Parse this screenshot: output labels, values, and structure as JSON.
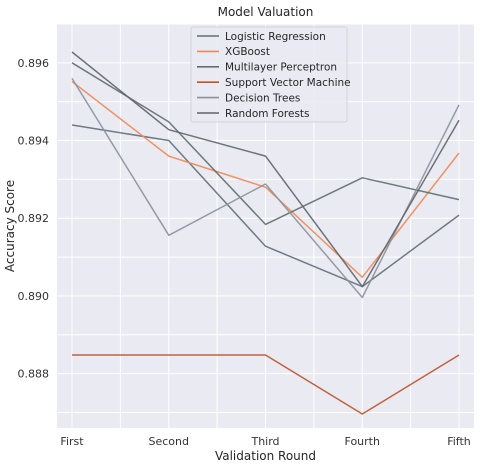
{
  "chart_data": {
    "type": "line",
    "title": "Model Valuation",
    "xlabel": "Validation Round",
    "ylabel": "Accuracy Score",
    "categories": [
      "First",
      "Second",
      "Third",
      "Fourth",
      "Fifth"
    ],
    "ylim": [
      0.8866,
      0.897
    ],
    "yticks": [
      0.888,
      0.89,
      0.892,
      0.894,
      0.896
    ],
    "ytick_labels": [
      "0.888",
      "0.890",
      "0.892",
      "0.894",
      "0.896"
    ],
    "grid": true,
    "legend_position": "top-center",
    "series": [
      {
        "name": "Logistic Regression",
        "color": "#5f6f7a",
        "values": [
          0.8944,
          0.894,
          0.89128,
          0.89024,
          0.89208
        ]
      },
      {
        "name": "XGBoost",
        "color": "#ee8a55",
        "values": [
          0.89552,
          0.8936,
          0.8928,
          0.89048,
          0.89368
        ]
      },
      {
        "name": "Multilayer Perceptron",
        "color": "#5f6e6e",
        "values": [
          0.896,
          0.89448,
          0.89184,
          0.89304,
          0.89248
        ]
      },
      {
        "name": "Support Vector Machine",
        "color": "#c0532a",
        "values": [
          0.88848,
          0.88848,
          0.88848,
          0.88696,
          0.88848
        ]
      },
      {
        "name": "Decision Trees",
        "color": "#8a929c",
        "values": [
          0.8956,
          0.89156,
          0.89288,
          0.88996,
          0.89492
        ]
      },
      {
        "name": "Random Forests",
        "color": "#60656a",
        "values": [
          0.89628,
          0.89428,
          0.8936,
          0.89024,
          0.89452
        ]
      }
    ]
  }
}
